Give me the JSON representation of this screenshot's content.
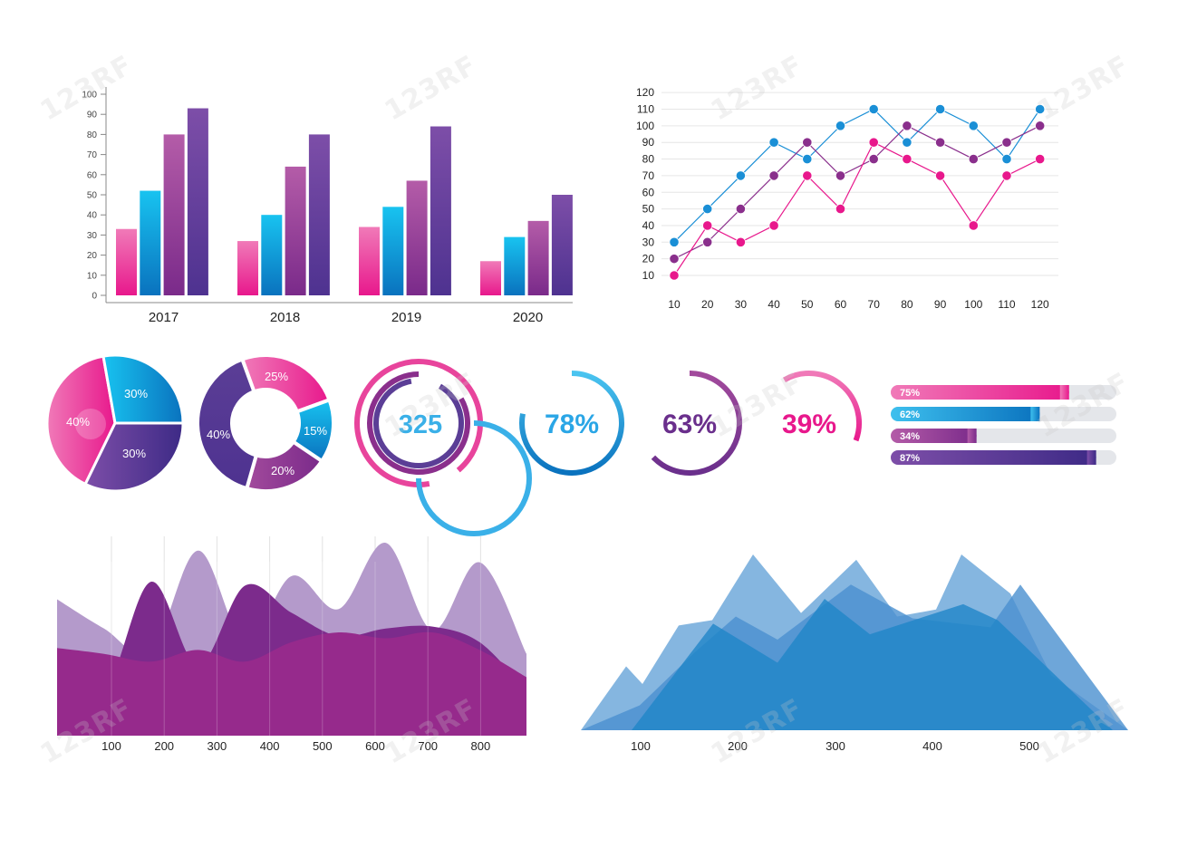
{
  "watermark": "123RF",
  "colors": {
    "pink": "#e8188c",
    "pink_light": "#f07ab8",
    "blue": "#1a8fd6",
    "blue_light": "#3ec0ee",
    "purple": "#8a2f8c",
    "violet": "#5b3e96",
    "track": "#e4e6ea",
    "axis": "#888888"
  },
  "chart_data": [
    {
      "type": "bar",
      "categories": [
        "2017",
        "2018",
        "2019",
        "2020"
      ],
      "series": [
        {
          "values": [
            33,
            27,
            34,
            17
          ]
        },
        {
          "values": [
            52,
            40,
            44,
            29
          ]
        },
        {
          "values": [
            80,
            64,
            57,
            37
          ]
        },
        {
          "values": [
            93,
            80,
            84,
            50
          ]
        }
      ],
      "series_colors": [
        [
          "#f07ab8",
          "#e8188c"
        ],
        [
          "#18c3f0",
          "#0a72be"
        ],
        [
          "#b45ca8",
          "#7a2a8a"
        ],
        [
          "#7d4ea8",
          "#4e3290"
        ]
      ],
      "yticks": [
        "0",
        "10",
        "20",
        "30",
        "40",
        "50",
        "60",
        "70",
        "80",
        "90",
        "100"
      ],
      "ylim": [
        0,
        100
      ],
      "grid": false
    },
    {
      "type": "line",
      "x": [
        "10",
        "20",
        "30",
        "40",
        "50",
        "60",
        "70",
        "80",
        "90",
        "100",
        "110",
        "120"
      ],
      "yticks": [
        "10",
        "20",
        "30",
        "40",
        "50",
        "60",
        "70",
        "80",
        "90",
        "100",
        "110",
        "120"
      ],
      "ylim": [
        0,
        120
      ],
      "grid": true,
      "series": [
        {
          "color": "#1a8fd6",
          "values": [
            30,
            50,
            70,
            90,
            80,
            100,
            110,
            90,
            110,
            100,
            80,
            110
          ]
        },
        {
          "color": "#8a2f8c",
          "values": [
            20,
            30,
            50,
            70,
            90,
            70,
            80,
            100,
            90,
            80,
            90,
            100
          ]
        },
        {
          "color": "#e8188c",
          "values": [
            10,
            40,
            30,
            40,
            70,
            50,
            90,
            80,
            70,
            40,
            70,
            80
          ]
        }
      ]
    },
    {
      "type": "pie",
      "slices": [
        {
          "label": "40%",
          "value": 40,
          "color": "#e8449c"
        },
        {
          "label": "30%",
          "value": 30,
          "color": "#1a8fd6"
        },
        {
          "label": "30%",
          "value": 30,
          "color": "#4e3290"
        }
      ]
    },
    {
      "type": "pie",
      "donut": true,
      "slices": [
        {
          "label": "25%",
          "value": 25,
          "color": "#e8449c"
        },
        {
          "label": "15%",
          "value": 15,
          "color": "#1a8fd6"
        },
        {
          "label": "20%",
          "value": 20,
          "color": "#8a2f8c"
        },
        {
          "label": "40%",
          "value": 40,
          "color": "#4e3290"
        }
      ]
    },
    {
      "type": "gauge",
      "items": [
        {
          "label": "325",
          "color": "#3ab0e8"
        },
        {
          "label": "78%",
          "value": 78,
          "color": "#1a8fd6",
          "text_color": "#2aa6e6"
        },
        {
          "label": "63%",
          "value": 63,
          "color": "#8a2f8c",
          "text_color": "#6a2f8c"
        },
        {
          "label": "39%",
          "value": 39,
          "color": "#e8188c",
          "text_color": "#e8188c"
        }
      ]
    },
    {
      "type": "bar",
      "orientation": "horizontal",
      "items": [
        {
          "label": "75%",
          "value": 75,
          "color": "#e8188c"
        },
        {
          "label": "62%",
          "value": 62,
          "color": "#1a8fd6"
        },
        {
          "label": "34%",
          "value": 34,
          "color": "#8a2f8c"
        },
        {
          "label": "87%",
          "value": 87,
          "color": "#4e3290"
        }
      ]
    },
    {
      "type": "area",
      "x_ticks": [
        "100",
        "200",
        "300",
        "400",
        "500",
        "600",
        "700",
        "800"
      ],
      "layers": [
        {
          "color": "#b49acb",
          "values": [
            70,
            55,
            43,
            95,
            48,
            82,
            65,
            99,
            54,
            89,
            42
          ]
        },
        {
          "color": "#7c2b8c",
          "values": [
            45,
            23,
            79,
            36,
            77,
            63,
            51,
            55,
            56,
            48,
            23
          ]
        },
        {
          "color": "#962a8c",
          "values": [
            45,
            42,
            38,
            44,
            38,
            48,
            53,
            50,
            53,
            44,
            30
          ]
        }
      ]
    },
    {
      "type": "area",
      "x_ticks": [
        "100",
        "200",
        "300",
        "400",
        "500"
      ],
      "layers": [
        {
          "color": "#7eb2de",
          "values": [
            0,
            36,
            26,
            59,
            62,
            99,
            66,
            96,
            64,
            68,
            99,
            77,
            31,
            0
          ]
        },
        {
          "color": "#4a90d0",
          "values": [
            0,
            14,
            44,
            64,
            51,
            82,
            63,
            58,
            82,
            0
          ]
        },
        {
          "color": "#1f86c8",
          "values": [
            0,
            60,
            38,
            74,
            54,
            71,
            62,
            0
          ]
        }
      ]
    }
  ]
}
